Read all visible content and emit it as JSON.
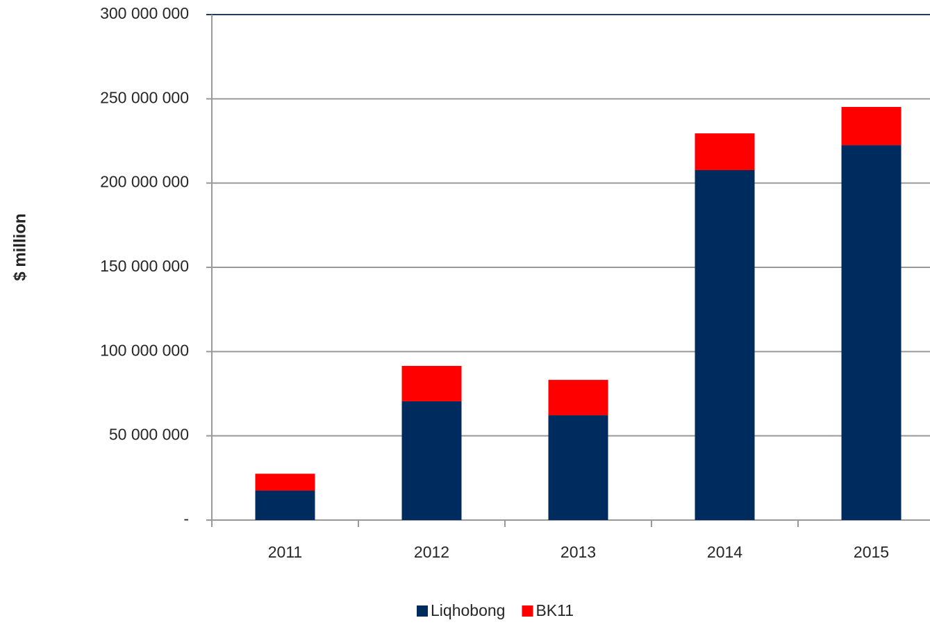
{
  "chart_data": {
    "type": "stacked_bar",
    "y_label": "$ million",
    "categories": [
      "2011",
      "2012",
      "2013",
      "2014",
      "2015"
    ],
    "series": [
      {
        "name": "Liqhobong",
        "color": "#002b5f",
        "values": [
          17500000,
          70500000,
          62200000,
          207700000,
          222500000
        ]
      },
      {
        "name": "BK11",
        "color": "#ff0000",
        "values": [
          10000000,
          21000000,
          21000000,
          21800000,
          22700000
        ]
      }
    ],
    "ylim": [
      0,
      300000000
    ],
    "yticks": [
      {
        "value": 0,
        "label": "-"
      },
      {
        "value": 50000000,
        "label": "50 000 000"
      },
      {
        "value": 100000000,
        "label": "100 000 000"
      },
      {
        "value": 150000000,
        "label": "150 000 000"
      },
      {
        "value": 200000000,
        "label": "200 000 000"
      },
      {
        "value": 250000000,
        "label": "250 000 000"
      },
      {
        "value": 300000000,
        "label": "300 000 000"
      }
    ],
    "grid": true,
    "legend": "bottom"
  }
}
